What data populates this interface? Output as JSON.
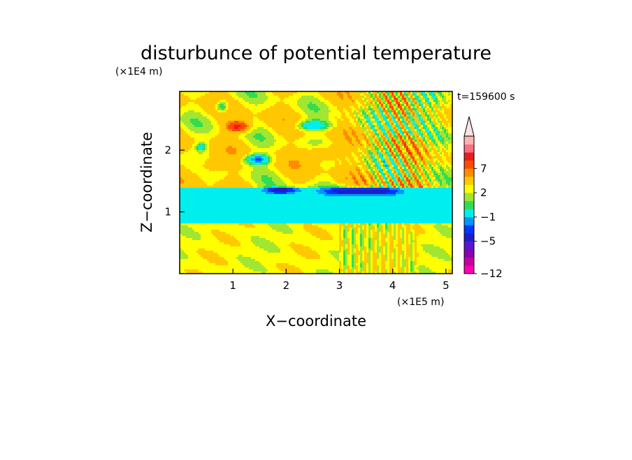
{
  "chart_data": {
    "type": "heatmap",
    "title": "disturbunce of potential temperature",
    "xlabel": "X−coordinate",
    "ylabel": "Z−coordinate",
    "x_unit": "(×1E5 m)",
    "y_unit": "(×1E4 m)",
    "time_label": "t=159600 s",
    "xlim": [
      0,
      5.12
    ],
    "ylim": [
      0,
      2.95
    ],
    "xticks": [
      1,
      2,
      3,
      4,
      5
    ],
    "yticks": [
      1,
      2
    ],
    "colorbar": {
      "levels": [
        -12,
        -11,
        -9,
        -7,
        -5,
        -4,
        -3,
        -1,
        0,
        1,
        2,
        4,
        5,
        7,
        8,
        9
      ],
      "colors": [
        "#ff00b4",
        "#c800a0",
        "#8c00b4",
        "#5a14d2",
        "#1e1ec8",
        "#0037ff",
        "#0096ff",
        "#00eeee",
        "#32dc50",
        "#a0e632",
        "#ffff00",
        "#ffc800",
        "#ff8c00",
        "#ff4b00",
        "#e61e1e",
        "#ff6e82",
        "#ffb4b4",
        "#ffe1e1"
      ],
      "tick_labels": [
        "−12",
        "−5",
        "−1",
        "2",
        "7"
      ],
      "extend_max": true
    },
    "regions": [
      {
        "z_min": 0.0,
        "z_max": 0.8,
        "dominant_value": 1.5,
        "description": "weak positive anomaly"
      },
      {
        "z_min": 0.8,
        "z_max": 1.4,
        "dominant_value": -1.5,
        "description": "negative band with local minima near -5"
      },
      {
        "z_min": 1.4,
        "z_max": 2.95,
        "dominant_value": 2,
        "description": "mixed anomalies, maxima near 7"
      }
    ]
  }
}
